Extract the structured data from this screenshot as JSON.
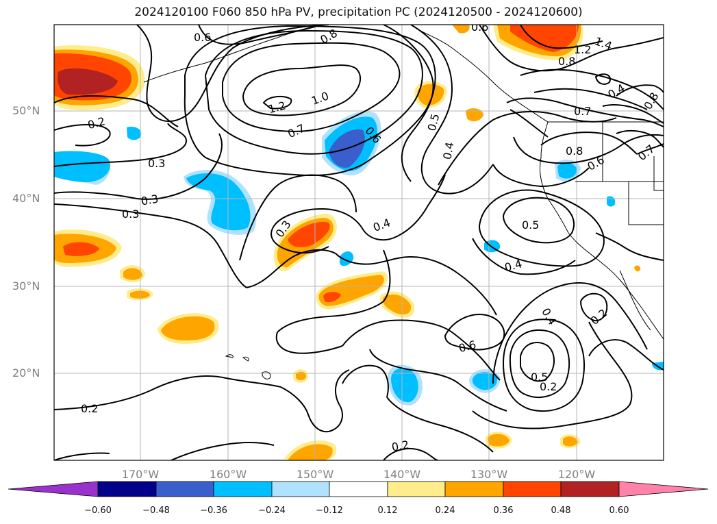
{
  "title": "2024120100 F060 850 hPa PV, precipitation PC (2024120500 - 2024120600)",
  "lat_labels": [
    "50°N",
    "40°N",
    "30°N",
    "20°N"
  ],
  "lon_labels": [
    "170°W",
    "160°W",
    "150°W",
    "140°W",
    "130°W",
    "120°W"
  ],
  "colorbar": {
    "ticks": [
      "−0.60",
      "−0.48",
      "−0.36",
      "−0.24",
      "−0.12",
      "0.12",
      "0.24",
      "0.36",
      "0.48",
      "0.60"
    ],
    "colors": [
      "#9932cc",
      "#00008b",
      "#3a5fcd",
      "#00bfff",
      "#b0e2ff",
      "#ffffff",
      "#ffec8b",
      "#ffa500",
      "#ff4500",
      "#b22222",
      "#ff82ab"
    ]
  },
  "contour_labels": [
    "0.6",
    "0.8",
    "0.6",
    "1.4",
    "1.2",
    "0.8",
    "1.2",
    "1.0",
    "0.4",
    "0.8",
    "0.7",
    "0.2",
    "0.7",
    "0.6",
    "0.5",
    "0.7",
    "0.8",
    "0.6",
    "0.3",
    "0.4",
    "0.3",
    "0.3",
    "0.4",
    "0.3",
    "0.5",
    "0.4",
    "0.2",
    "0.4",
    "0.6",
    "0.5",
    "0.2",
    "0.2",
    "0.2"
  ],
  "shading_colors": {
    "pos1": "#ffec8b",
    "pos2": "#ffa500",
    "pos3": "#ff4500",
    "pos4": "#b22222",
    "neg1": "#b0e2ff",
    "neg2": "#00bfff",
    "neg3": "#3a5fcd"
  }
}
